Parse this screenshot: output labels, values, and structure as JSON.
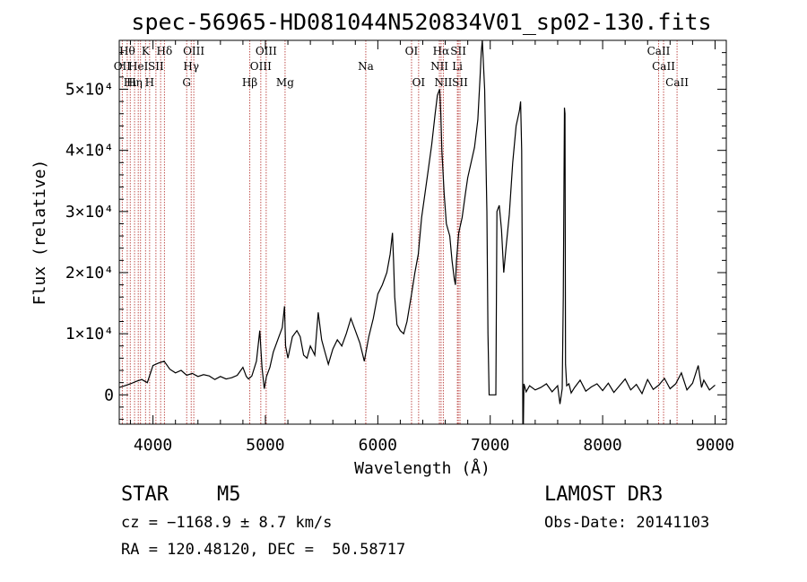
{
  "chart_data": {
    "type": "line",
    "title": "spec-56965-HD081044N520834V01_sp02-130.fits",
    "xlabel": "Wavelength (Å)",
    "ylabel": "Flux (relative)",
    "xlim": [
      3700,
      9100
    ],
    "ylim": [
      -4800,
      58000
    ],
    "x_ticks": [
      4000,
      5000,
      6000,
      7000,
      8000,
      9000
    ],
    "x_tick_labels": [
      "4000",
      "5000",
      "6000",
      "7000",
      "8000",
      "9000"
    ],
    "y_ticks": [
      0,
      10000,
      20000,
      30000,
      40000,
      50000
    ],
    "y_tick_labels": [
      "0",
      "1×10⁴",
      "2×10⁴",
      "3×10⁴",
      "4×10⁴",
      "5×10⁴"
    ],
    "grid": false,
    "line_color": "#000000",
    "marker_color": "#c0504d",
    "series": [
      {
        "x": [
          3700,
          3750,
          3800,
          3850,
          3900,
          3950,
          4000,
          4050,
          4100,
          4150,
          4200,
          4250,
          4300,
          4350,
          4400,
          4450,
          4500,
          4550,
          4600,
          4650,
          4700,
          4750,
          4800,
          4830,
          4850,
          4880,
          4920,
          4950,
          4970,
          4990,
          5010,
          5040,
          5070,
          5100,
          5130,
          5150,
          5170,
          5180,
          5200,
          5240,
          5280,
          5310,
          5340,
          5370,
          5400,
          5440,
          5470,
          5500,
          5530,
          5560,
          5600,
          5640,
          5680,
          5720,
          5760,
          5800,
          5840,
          5880,
          5920,
          5960,
          6000,
          6040,
          6080,
          6110,
          6130,
          6140,
          6150,
          6170,
          6200,
          6230,
          6260,
          6300,
          6330,
          6360,
          6390,
          6420,
          6450,
          6480,
          6510,
          6530,
          6550,
          6560,
          6570,
          6590,
          6610,
          6640,
          6660,
          6680,
          6690,
          6700,
          6720,
          6750,
          6780,
          6800,
          6830,
          6860,
          6890,
          6910,
          6920,
          6930,
          6950,
          6970,
          6980,
          6990,
          7000,
          7030,
          7050,
          7060,
          7080,
          7100,
          7120,
          7140,
          7170,
          7200,
          7230,
          7260,
          7270,
          7280,
          7285,
          7290,
          7295,
          7300,
          7320,
          7350,
          7400,
          7450,
          7500,
          7550,
          7600,
          7620,
          7640,
          7650,
          7660,
          7665,
          7670,
          7680,
          7700,
          7720,
          7750,
          7800,
          7850,
          7900,
          7950,
          8000,
          8050,
          8100,
          8150,
          8200,
          8250,
          8300,
          8350,
          8400,
          8450,
          8500,
          8550,
          8600,
          8650,
          8700,
          8750,
          8800,
          8850,
          8880,
          8900,
          8950,
          9000
        ],
        "y": [
          1200,
          1500,
          1800,
          2200,
          2500,
          2000,
          4800,
          5200,
          5500,
          4200,
          3600,
          4000,
          3200,
          3500,
          3000,
          3300,
          3100,
          2500,
          3000,
          2600,
          2800,
          3200,
          4500,
          3000,
          2600,
          3100,
          5500,
          10500,
          4500,
          1000,
          3000,
          4500,
          7000,
          8500,
          10000,
          11000,
          14500,
          8000,
          6000,
          9500,
          10500,
          9500,
          6500,
          6000,
          8000,
          6500,
          13500,
          9000,
          7000,
          5000,
          7500,
          9000,
          8000,
          10000,
          12500,
          10500,
          8500,
          5500,
          9500,
          12500,
          16500,
          18000,
          20000,
          23000,
          26500,
          22000,
          16000,
          11500,
          10500,
          10000,
          12000,
          16500,
          20000,
          23000,
          29000,
          33000,
          37000,
          41000,
          46000,
          49000,
          50000,
          46000,
          40000,
          33000,
          28000,
          26000,
          22000,
          19000,
          18000,
          22000,
          26500,
          29000,
          33000,
          35500,
          38000,
          40500,
          45000,
          52000,
          56000,
          58000,
          50000,
          30000,
          10000,
          0,
          0,
          0,
          0,
          30000,
          31000,
          27000,
          20000,
          24000,
          29500,
          38000,
          44000,
          46500,
          48000,
          40000,
          20000,
          -5000,
          -5000,
          1800,
          500,
          1500,
          800,
          1200,
          1800,
          500,
          1500,
          -1500,
          1000,
          16000,
          47000,
          46000,
          5000,
          1500,
          1800,
          300,
          1200,
          2400,
          600,
          1300,
          1800,
          700,
          1900,
          400,
          1500,
          2600,
          800,
          1700,
          200,
          2500,
          900,
          1600,
          2700,
          1000,
          1800,
          3600,
          800,
          1900,
          4800,
          1200,
          2400,
          800,
          1600
        ]
      }
    ],
    "lines": [
      {
        "x": 3727,
        "label": "OII",
        "row": 2
      },
      {
        "x": 3771,
        "label": "Hθ",
        "row": 1
      },
      {
        "x": 3798,
        "label": "Hι",
        "row": 3
      },
      {
        "x": 3836,
        "label": "Hη",
        "row": 3
      },
      {
        "x": 3869,
        "label": "HeI",
        "row": 2
      },
      {
        "x": 3889,
        "label": "",
        "row": 0
      },
      {
        "x": 3934,
        "label": "K",
        "row": 1
      },
      {
        "x": 3970,
        "label": "H",
        "row": 3
      },
      {
        "x": 4026,
        "label": "SII",
        "row": 2
      },
      {
        "x": 4068,
        "label": "",
        "row": 0
      },
      {
        "x": 4102,
        "label": "Hδ",
        "row": 1
      },
      {
        "x": 4300,
        "label": "G",
        "row": 3
      },
      {
        "x": 4340,
        "label": "Hγ",
        "row": 2
      },
      {
        "x": 4363,
        "label": "OIII",
        "row": 1
      },
      {
        "x": 4861,
        "label": "Hβ",
        "row": 3
      },
      {
        "x": 4959,
        "label": "OIII",
        "row": 2
      },
      {
        "x": 5007,
        "label": "OIII",
        "row": 1
      },
      {
        "x": 5175,
        "label": "Mg",
        "row": 3
      },
      {
        "x": 5893,
        "label": "Na",
        "row": 2
      },
      {
        "x": 6300,
        "label": "OI",
        "row": 1
      },
      {
        "x": 6363,
        "label": "OI",
        "row": 3
      },
      {
        "x": 6548,
        "label": "NII",
        "row": 2
      },
      {
        "x": 6563,
        "label": "Hα",
        "row": 1
      },
      {
        "x": 6583,
        "label": "NII",
        "row": 3
      },
      {
        "x": 6708,
        "label": "Li",
        "row": 2
      },
      {
        "x": 6716,
        "label": "SII",
        "row": 1
      },
      {
        "x": 6731,
        "label": "SII",
        "row": 3
      },
      {
        "x": 8498,
        "label": "CaII",
        "row": 1
      },
      {
        "x": 8542,
        "label": "CaII",
        "row": 2
      },
      {
        "x": 8662,
        "label": "CaII",
        "row": 3
      }
    ]
  },
  "info": {
    "object_class": "STAR",
    "subclass": "M5",
    "survey": "LAMOST DR3",
    "cz": "cz = −1168.9 ± 8.7 km/s",
    "obs_date": "Obs-Date: 20141103",
    "coords": "RA = 120.48120, DEC =  50.58717"
  }
}
